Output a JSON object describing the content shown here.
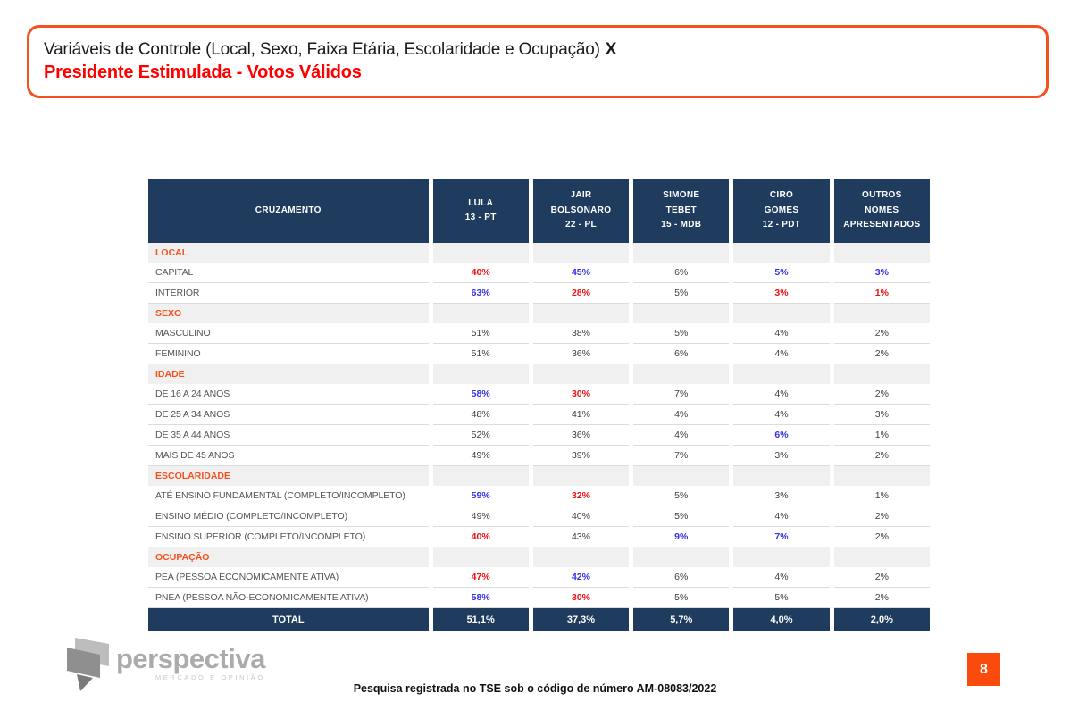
{
  "slide": {
    "title_line1": "Variáveis de Controle (Local, Sexo, Faixa Etária, Escolaridade e Ocupação)",
    "title_x": "X",
    "title_line2": "Presidente Estimulada - Votos Válidos",
    "footer_note": "Pesquisa registrada no TSE sob o código de número AM-08083/2022",
    "page_number": "8"
  },
  "logo": {
    "name": "perspectiva",
    "tagline": "MERCADO E OPINIÃO"
  },
  "colors": {
    "navy": "#1F3B5E",
    "accent_orange": "#F4511E",
    "page_box_orange": "#FA4B0C",
    "title_red": "#FF0000",
    "value_blue": "#3333E6",
    "value_red": "#EE1111",
    "section_bg": "#F0F0F0"
  },
  "table": {
    "first_column_header": "CRUZAMENTO",
    "candidate_columns": [
      {
        "lines": [
          "LULA",
          "13 - PT"
        ]
      },
      {
        "lines": [
          "JAIR",
          "BOLSONARO",
          "22 - PL"
        ]
      },
      {
        "lines": [
          "SIMONE",
          "TEBET",
          "15 - MDB"
        ]
      },
      {
        "lines": [
          "CIRO",
          "GOMES",
          "12 - PDT"
        ]
      },
      {
        "lines": [
          "OUTROS",
          "NOMES",
          "APRESENTADOS"
        ]
      }
    ],
    "sections": [
      {
        "label": "LOCAL",
        "rows": [
          {
            "label": "CAPITAL",
            "values": [
              {
                "v": "40%",
                "c": "red"
              },
              {
                "v": "45%",
                "c": "blue"
              },
              {
                "v": "6%",
                "c": "plain"
              },
              {
                "v": "5%",
                "c": "blue"
              },
              {
                "v": "3%",
                "c": "blue"
              }
            ]
          },
          {
            "label": "INTERIOR",
            "values": [
              {
                "v": "63%",
                "c": "blue"
              },
              {
                "v": "28%",
                "c": "red"
              },
              {
                "v": "5%",
                "c": "plain"
              },
              {
                "v": "3%",
                "c": "red"
              },
              {
                "v": "1%",
                "c": "red"
              }
            ]
          }
        ]
      },
      {
        "label": "SEXO",
        "rows": [
          {
            "label": "MASCULINO",
            "values": [
              {
                "v": "51%",
                "c": "plain"
              },
              {
                "v": "38%",
                "c": "plain"
              },
              {
                "v": "5%",
                "c": "plain"
              },
              {
                "v": "4%",
                "c": "plain"
              },
              {
                "v": "2%",
                "c": "plain"
              }
            ]
          },
          {
            "label": "FEMININO",
            "values": [
              {
                "v": "51%",
                "c": "plain"
              },
              {
                "v": "36%",
                "c": "plain"
              },
              {
                "v": "6%",
                "c": "plain"
              },
              {
                "v": "4%",
                "c": "plain"
              },
              {
                "v": "2%",
                "c": "plain"
              }
            ]
          }
        ]
      },
      {
        "label": "IDADE",
        "rows": [
          {
            "label": "DE 16 A 24 ANOS",
            "values": [
              {
                "v": "58%",
                "c": "blue"
              },
              {
                "v": "30%",
                "c": "red"
              },
              {
                "v": "7%",
                "c": "plain"
              },
              {
                "v": "4%",
                "c": "plain"
              },
              {
                "v": "2%",
                "c": "plain"
              }
            ]
          },
          {
            "label": "DE 25 A 34 ANOS",
            "values": [
              {
                "v": "48%",
                "c": "plain"
              },
              {
                "v": "41%",
                "c": "plain"
              },
              {
                "v": "4%",
                "c": "plain"
              },
              {
                "v": "4%",
                "c": "plain"
              },
              {
                "v": "3%",
                "c": "plain"
              }
            ]
          },
          {
            "label": "DE 35 A 44 ANOS",
            "values": [
              {
                "v": "52%",
                "c": "plain"
              },
              {
                "v": "36%",
                "c": "plain"
              },
              {
                "v": "4%",
                "c": "plain"
              },
              {
                "v": "6%",
                "c": "blue"
              },
              {
                "v": "1%",
                "c": "plain"
              }
            ]
          },
          {
            "label": "MAIS DE 45 ANOS",
            "values": [
              {
                "v": "49%",
                "c": "plain"
              },
              {
                "v": "39%",
                "c": "plain"
              },
              {
                "v": "7%",
                "c": "plain"
              },
              {
                "v": "3%",
                "c": "plain"
              },
              {
                "v": "2%",
                "c": "plain"
              }
            ]
          }
        ]
      },
      {
        "label": "ESCOLARIDADE",
        "rows": [
          {
            "label": "ATÉ ENSINO FUNDAMENTAL (COMPLETO/INCOMPLETO)",
            "values": [
              {
                "v": "59%",
                "c": "blue"
              },
              {
                "v": "32%",
                "c": "red"
              },
              {
                "v": "5%",
                "c": "plain"
              },
              {
                "v": "3%",
                "c": "plain"
              },
              {
                "v": "1%",
                "c": "plain"
              }
            ]
          },
          {
            "label": "ENSINO MÉDIO (COMPLETO/INCOMPLETO)",
            "values": [
              {
                "v": "49%",
                "c": "plain"
              },
              {
                "v": "40%",
                "c": "plain"
              },
              {
                "v": "5%",
                "c": "plain"
              },
              {
                "v": "4%",
                "c": "plain"
              },
              {
                "v": "2%",
                "c": "plain"
              }
            ]
          },
          {
            "label": "ENSINO SUPERIOR (COMPLETO/INCOMPLETO)",
            "values": [
              {
                "v": "40%",
                "c": "red"
              },
              {
                "v": "43%",
                "c": "plain"
              },
              {
                "v": "9%",
                "c": "blue"
              },
              {
                "v": "7%",
                "c": "blue"
              },
              {
                "v": "2%",
                "c": "plain"
              }
            ]
          }
        ]
      },
      {
        "label": "OCUPAÇÃO",
        "rows": [
          {
            "label": "PEA (PESSOA ECONOMICAMENTE ATIVA)",
            "values": [
              {
                "v": "47%",
                "c": "red"
              },
              {
                "v": "42%",
                "c": "blue"
              },
              {
                "v": "6%",
                "c": "plain"
              },
              {
                "v": "4%",
                "c": "plain"
              },
              {
                "v": "2%",
                "c": "plain"
              }
            ]
          },
          {
            "label": "PNEA (PESSOA NÃO-ECONOMICAMENTE ATIVA)",
            "values": [
              {
                "v": "58%",
                "c": "blue"
              },
              {
                "v": "30%",
                "c": "red"
              },
              {
                "v": "5%",
                "c": "plain"
              },
              {
                "v": "5%",
                "c": "plain"
              },
              {
                "v": "2%",
                "c": "plain"
              }
            ]
          }
        ]
      }
    ],
    "total": {
      "label": "TOTAL",
      "values": [
        "51,1%",
        "37,3%",
        "5,7%",
        "4,0%",
        "2,0%"
      ]
    }
  }
}
